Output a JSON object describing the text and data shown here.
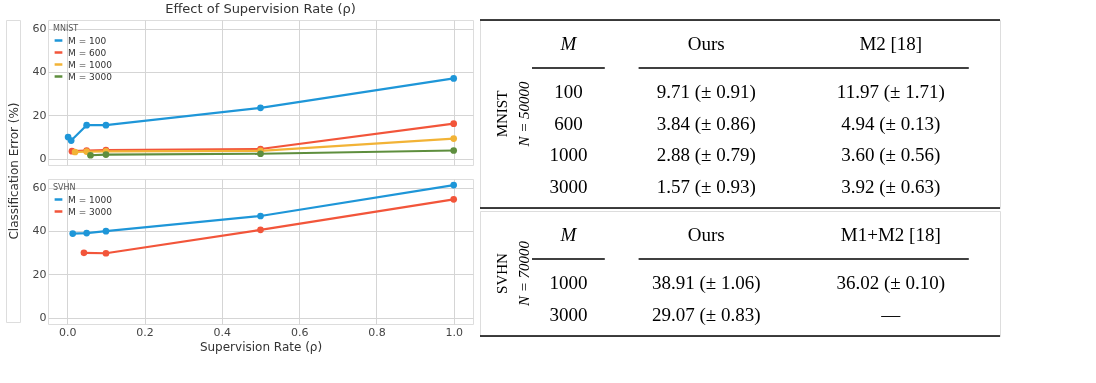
{
  "chart_data": [
    {
      "type": "line",
      "title": "Effect of Supervision Rate (ρ)",
      "ylabel": "Classification Error (%)",
      "legend_title": "MNIST",
      "legend": "top left",
      "grid": true,
      "marker": "circle",
      "line_style": "solid",
      "tick_labels": "y",
      "xlim": [
        -0.05,
        1.05
      ],
      "xticks": [
        0,
        0.2,
        0.4,
        0.6,
        0.8,
        1
      ],
      "ylim": [
        -3,
        64
      ],
      "yticks": [
        0,
        20,
        40,
        60
      ],
      "series": [
        {
          "name": "M = 100",
          "color": "#1e96d8",
          "x": [
            0.002,
            0.01,
            0.05,
            0.1,
            0.5,
            1.0
          ],
          "values": [
            9.9,
            8.3,
            15.4,
            15.4,
            23.4,
            37.0
          ]
        },
        {
          "name": "M = 600",
          "color": "#f2553a",
          "x": [
            0.012,
            0.05,
            0.1,
            0.5,
            1.0
          ],
          "values": [
            3.4,
            3.7,
            3.9,
            4.4,
            16.1
          ]
        },
        {
          "name": "M = 1000",
          "color": "#f2b336",
          "x": [
            0.02,
            0.05,
            0.1,
            0.5,
            1.0
          ],
          "values": [
            3.0,
            3.2,
            3.3,
            3.5,
            9.2
          ]
        },
        {
          "name": "M = 3000",
          "color": "#5e8e3e",
          "x": [
            0.06,
            0.1,
            0.5,
            1.0
          ],
          "values": [
            1.5,
            1.8,
            2.2,
            3.7
          ]
        }
      ]
    },
    {
      "type": "line",
      "xlabel": "Supervision Rate (ρ)",
      "legend_title": "SVHN",
      "legend": "top left",
      "grid": true,
      "marker": "circle",
      "line_style": "solid",
      "xlim": [
        -0.05,
        1.05
      ],
      "xticks": [
        {
          "value": 0,
          "label": "0.0"
        },
        0.2,
        0.4,
        0.6,
        0.8,
        {
          "value": 1,
          "label": "1.0"
        }
      ],
      "ylim": [
        -3,
        64
      ],
      "yticks": [
        0,
        20,
        40,
        60
      ],
      "series": [
        {
          "name": "M = 1000",
          "color": "#1e96d8",
          "x": [
            0.014,
            0.05,
            0.1,
            0.5,
            1.0
          ],
          "values": [
            38.8,
            39.0,
            39.9,
            46.9,
            61.2
          ]
        },
        {
          "name": "M = 3000",
          "color": "#f2553a",
          "x": [
            0.043,
            0.1,
            0.5,
            1.0
          ],
          "values": [
            29.9,
            29.7,
            40.5,
            54.6
          ]
        }
      ]
    },
    {
      "type": "other",
      "title": "MNIST",
      "subtitle": "N = 50000",
      "categories": [
        "M",
        "Ours",
        "M2 [18]"
      ],
      "annotations": [
        "100",
        "9.71 (± 0.91)",
        "11.97 (± 1.71)",
        "600",
        "3.84 (± 0.86)",
        "4.94 (± 0.13)",
        "1000",
        "2.88 (± 0.79)",
        "3.60 (± 0.56)",
        "3000",
        "1.57 (± 0.93)",
        "3.92 (± 0.63)"
      ]
    },
    {
      "type": "other",
      "title": "SVHN",
      "subtitle": "N = 70000",
      "categories": [
        "M",
        "Ours",
        "M1+M2 [18]"
      ],
      "annotations": [
        "1000",
        "38.91 (± 1.06)",
        "36.02 (± 0.10)",
        "3000",
        "29.07 (± 0.83)",
        "—"
      ]
    }
  ]
}
